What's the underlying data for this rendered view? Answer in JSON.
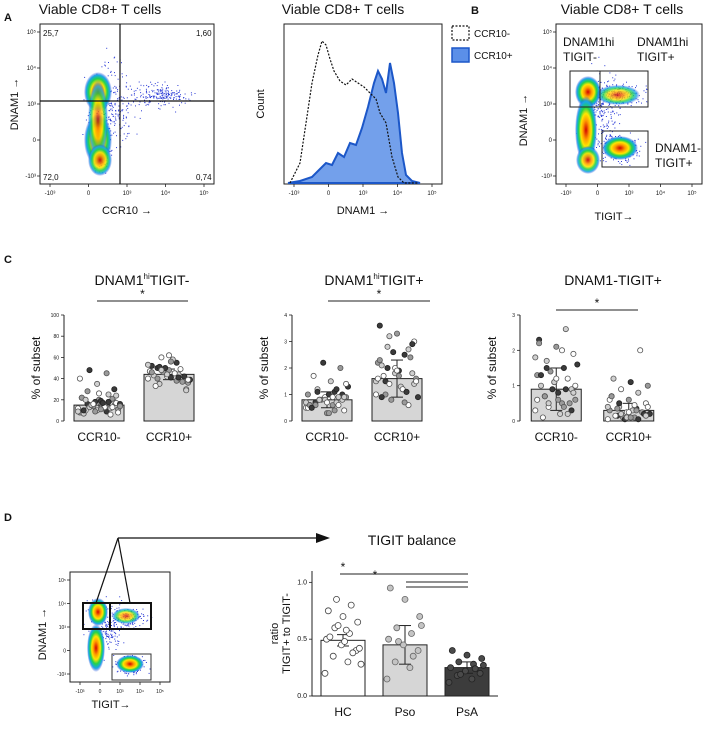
{
  "panel_letters": {
    "a": "A",
    "b": "B",
    "c": "C",
    "d": "D"
  },
  "colors": {
    "bar_ccr10": "#3a6fd8",
    "bar_fill": "#d6d6d6",
    "psa_fill": "#3c3c3c",
    "hist_fill": "#5b8fe8",
    "hist_line": "#1c57c8"
  },
  "panelA": {
    "dot": {
      "title": "Viable CD8+ T cells",
      "xlabel": "CCR10 →",
      "ylabel": "DNAM1 →",
      "quadrants": {
        "ul": "25,7",
        "ur": "1,60",
        "ll": "72,0",
        "lr": "0,74"
      },
      "xticks": [
        "-10³",
        "0",
        "10³",
        "10⁴",
        "10⁵"
      ],
      "yticks": [
        "10⁵",
        "10⁴",
        "10³",
        "0",
        "-10³"
      ]
    },
    "hist": {
      "title": "Viable CD8+ T cells",
      "xlabel": "DNAM1 →",
      "ylabel": "Count",
      "legend": [
        "CCR10-",
        "CCR10+"
      ],
      "xticks": [
        "-10³",
        "0",
        "10³",
        "10⁴",
        "10⁵"
      ]
    }
  },
  "panelB": {
    "title": "Viable CD8+ T cells",
    "xlabel": "TIGIT→",
    "ylabel": "DNAM1 →",
    "gate1": "DNAM1hi TIGIT-",
    "gate2": "DNAM1hi TIGIT+",
    "gate3": "DNAM1- TIGIT+",
    "xticks": [
      "-10³",
      "0",
      "10³",
      "10⁴",
      "10⁵"
    ],
    "yticks": [
      "10⁵",
      "10⁴",
      "10³",
      "0",
      "-10³"
    ]
  },
  "panelD_flow": {
    "xlabel": "TIGIT→",
    "ylabel": "DNAM1 →",
    "xticks": [
      "-10³",
      "0",
      "10³",
      "10⁴",
      "10⁵"
    ],
    "yticks": [
      "10⁵",
      "10⁴",
      "10³",
      "0",
      "-10³"
    ]
  },
  "chart_data": [
    {
      "type": "bar",
      "title_main": "DNAM1",
      "title_sup": "hi",
      "title_rest": "TIGIT-",
      "ylabel": "% of subset",
      "categories": [
        "CCR10-",
        "CCR10+"
      ],
      "values": [
        15,
        44
      ],
      "errors": [
        4,
        5
      ],
      "ylim": [
        0,
        100
      ],
      "yticks": [
        "0",
        "20",
        "40",
        "60",
        "80",
        "100"
      ],
      "significance": "*",
      "points": [
        [
          12,
          14,
          16,
          18,
          10,
          8,
          9,
          13,
          17,
          20,
          22,
          25,
          15,
          11,
          19,
          7,
          6,
          14,
          16,
          12,
          10,
          21,
          18,
          9,
          13,
          28,
          30,
          35,
          40,
          45,
          48,
          24,
          26,
          22,
          18,
          15,
          8,
          11,
          10,
          12,
          16,
          14,
          17,
          20,
          13,
          9
        ],
        [
          40,
          45,
          50,
          38,
          42,
          47,
          55,
          35,
          30,
          48,
          52,
          44,
          60,
          36,
          41,
          43,
          49,
          46,
          39,
          58,
          33,
          37,
          50,
          53,
          45,
          40,
          42,
          44,
          47,
          38,
          51,
          29,
          62,
          46,
          41,
          48,
          39,
          56
        ]
      ]
    },
    {
      "type": "bar",
      "title_main": "DNAM1",
      "title_sup": "hi",
      "title_rest": "TIGIT+",
      "ylabel": "% of subset",
      "categories": [
        "CCR10-",
        "CCR10+"
      ],
      "values": [
        0.8,
        1.6
      ],
      "errors": [
        0.3,
        0.7
      ],
      "ylim": [
        0,
        4
      ],
      "yticks": [
        "0",
        "1",
        "2",
        "3",
        "4"
      ],
      "significance": "*",
      "points": [
        [
          0.5,
          0.6,
          0.7,
          0.8,
          0.9,
          1.0,
          1.1,
          1.2,
          0.4,
          0.3,
          0.6,
          0.7,
          0.8,
          0.9,
          1.0,
          0.5,
          0.6,
          0.8,
          1.3,
          1.5,
          1.7,
          2.0,
          2.2,
          0.7,
          0.9,
          0.6,
          1.0,
          0.8,
          0.5,
          0.4,
          1.1,
          0.9,
          0.7,
          0.6,
          1.2,
          0.8,
          1.4,
          0.3,
          0.5,
          0.9
        ],
        [
          1.0,
          1.2,
          1.5,
          1.8,
          2.0,
          2.2,
          2.5,
          2.8,
          3.0,
          3.3,
          3.6,
          1.1,
          1.4,
          1.6,
          1.9,
          2.1,
          0.6,
          0.8,
          0.9,
          1.3,
          1.7,
          2.4,
          2.6,
          1.5,
          1.2,
          1.0,
          2.9,
          1.8,
          1.6,
          0.7,
          2.0,
          1.4,
          1.9,
          2.3,
          1.1,
          3.2,
          1.5,
          1.7,
          0.9,
          2.7
        ]
      ]
    },
    {
      "type": "bar",
      "title_main": "DNAM1-TIGIT+",
      "title_sup": "",
      "title_rest": "",
      "ylabel": "% of subset",
      "categories": [
        "CCR10-",
        "CCR10+"
      ],
      "values": [
        0.9,
        0.3
      ],
      "errors": [
        0.6,
        0.2
      ],
      "ylim": [
        0,
        3
      ],
      "yticks": [
        "0",
        "1",
        "2",
        "3"
      ],
      "significance": "*",
      "points": [
        [
          0.3,
          0.5,
          0.7,
          0.9,
          1.1,
          1.3,
          1.5,
          1.7,
          1.9,
          2.1,
          2.3,
          2.6,
          0.4,
          0.6,
          0.8,
          1.0,
          1.2,
          1.4,
          1.6,
          0.2,
          0.1,
          0.5,
          0.9,
          1.8,
          2.0,
          0.7,
          0.3,
          1.1,
          0.6,
          0.4,
          1.5,
          0.8,
          1.2,
          2.2,
          0.9,
          0.5,
          1.0,
          0.6,
          1.3,
          0.2
        ],
        [
          0.05,
          0.1,
          0.15,
          0.2,
          0.25,
          0.3,
          0.35,
          0.4,
          0.5,
          0.6,
          0.7,
          0.8,
          0.9,
          1.0,
          1.1,
          1.2,
          2.0,
          0.1,
          0.2,
          0.3,
          0.15,
          0.25,
          0.05,
          0.4,
          0.45,
          0.35,
          0.2,
          0.1,
          0.6,
          0.3,
          0.5,
          0.15,
          0.25,
          0.7,
          0.05,
          0.2,
          0.4,
          0.1
        ]
      ]
    },
    {
      "type": "bar",
      "title": "TIGIT balance",
      "ylabel_line1": "ratio",
      "ylabel_line2": "TIGIT+ to TIGIT-",
      "categories": [
        "HC",
        "Pso",
        "PsA"
      ],
      "values": [
        0.49,
        0.45,
        0.25
      ],
      "errors": [
        0.05,
        0.17,
        0.05
      ],
      "ylim": [
        0,
        1.1
      ],
      "yticks": [
        "0.0",
        "0.5",
        "1.0"
      ],
      "significance": [
        "*",
        "*"
      ],
      "points": [
        [
          0.2,
          0.3,
          0.35,
          0.4,
          0.45,
          0.5,
          0.55,
          0.6,
          0.65,
          0.7,
          0.75,
          0.8,
          0.85,
          0.42,
          0.48,
          0.52,
          0.38,
          0.62,
          0.28,
          0.58
        ],
        [
          0.15,
          0.25,
          0.3,
          0.4,
          0.45,
          0.5,
          0.55,
          0.6,
          0.7,
          0.85,
          0.95,
          0.35,
          0.48,
          0.62
        ],
        [
          0.12,
          0.15,
          0.18,
          0.2,
          0.22,
          0.25,
          0.28,
          0.3,
          0.33,
          0.36,
          0.4,
          0.24,
          0.19,
          0.27
        ]
      ]
    }
  ]
}
